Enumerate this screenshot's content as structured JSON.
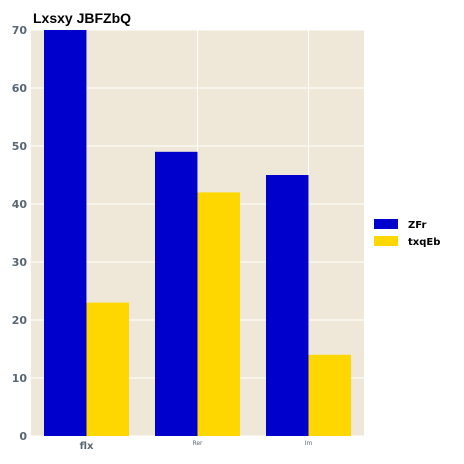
{
  "chart_data": {
    "type": "bar",
    "title": "Lxsxy JBFZbQ",
    "xlabel": "",
    "ylabel": "",
    "categories": [
      "flx",
      "Rer",
      "Im"
    ],
    "series": [
      {
        "name": "ZFr",
        "values": [
          70,
          49,
          45
        ],
        "color": "#0000cc"
      },
      {
        "name": "txqEb",
        "values": [
          23,
          42,
          14
        ],
        "color": "#ffd700"
      }
    ],
    "ylim": [
      0,
      70
    ],
    "yticks": [
      0,
      10,
      20,
      30,
      40,
      50,
      60,
      70
    ],
    "grid": true,
    "background_color": "#efe8d8",
    "legend_position": "right"
  }
}
